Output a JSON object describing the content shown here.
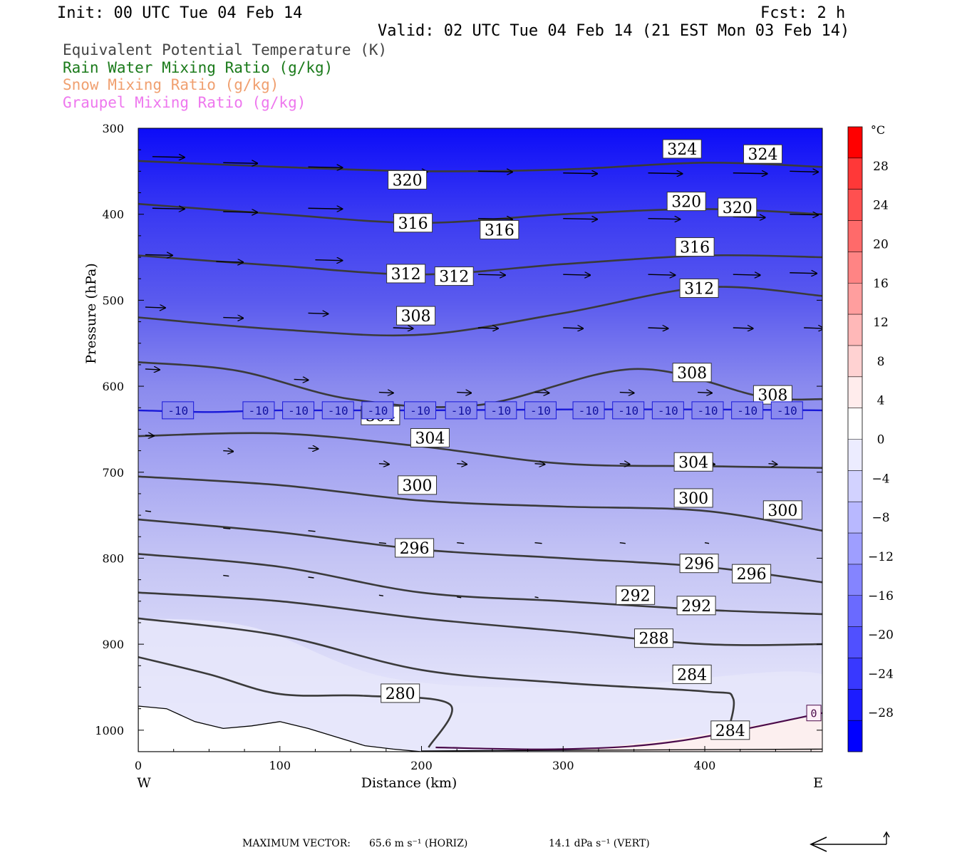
{
  "header": {
    "init": "Init: 00 UTC Tue 04 Feb 14",
    "fcst": "Fcst:    2 h",
    "valid": "Valid: 02 UTC Tue 04 Feb 14 (21 EST Mon 03 Feb 14)"
  },
  "legend": [
    {
      "label": "Equivalent Potential Temperature (K)",
      "color": "#444444"
    },
    {
      "label": "Rain Water Mixing Ratio (g/kg)",
      "color": "#1a7a1a"
    },
    {
      "label": "Snow Mixing Ratio (g/kg)",
      "color": "#f0a070"
    },
    {
      "label": "Graupel Mixing Ratio (g/kg)",
      "color": "#ee77ee"
    }
  ],
  "footer": {
    "max_vector": "MAXIMUM VECTOR:",
    "horiz": "65.6 m s⁻¹ (HORIZ)",
    "vert": "14.1 dPa s⁻¹ (VERT)"
  },
  "chart_data": {
    "type": "heatmap",
    "xlabel": "Distance (km)",
    "ylabel": "Pressure (hPa)",
    "x_left_label": "W",
    "x_right_label": "E",
    "xlim": [
      0,
      483
    ],
    "ylim": [
      300,
      1025
    ],
    "x_ticks": [
      0,
      100,
      200,
      300,
      400
    ],
    "y_ticks": [
      300,
      400,
      500,
      600,
      700,
      800,
      900,
      1000
    ],
    "colorbar": {
      "unit": "°C",
      "ticks": [
        28,
        24,
        20,
        16,
        12,
        8,
        4,
        0,
        -4,
        -8,
        -12,
        -16,
        -20,
        -24,
        -28
      ],
      "colors_top_to_bottom": [
        "#ff0000",
        "#ff3838",
        "#ff5050",
        "#ff6a6a",
        "#ff8484",
        "#ff9e9e",
        "#ffb8b8",
        "#ffd2d2",
        "#ffecec",
        "#ffffff",
        "#ececff",
        "#d2d2ff",
        "#b8b8ff",
        "#9e9eff",
        "#8484ff",
        "#6a6aff",
        "#5050ff",
        "#3838ff",
        "#1c1cff",
        "#0000ff"
      ]
    },
    "temperature_field_bands": [
      {
        "pressure": 300,
        "temp_c": -30,
        "color": "#0c0cf8"
      },
      {
        "pressure": 400,
        "temp_c": -26,
        "color": "#3a3af2"
      },
      {
        "pressure": 500,
        "temp_c": -20,
        "color": "#5a5aee"
      },
      {
        "pressure": 600,
        "temp_c": -13,
        "color": "#8a8aee"
      },
      {
        "pressure": 700,
        "temp_c": -8,
        "color": "#a8a8f2"
      },
      {
        "pressure": 800,
        "temp_c": -5,
        "color": "#c4c4f4"
      },
      {
        "pressure": 900,
        "temp_c": -3,
        "color": "#d8d8f8"
      },
      {
        "pressure": 1000,
        "temp_c": 0,
        "color": "#ececfc"
      }
    ],
    "theta_e_contours": [
      {
        "value": 324,
        "points": [
          [
            0,
            338
          ],
          [
            100,
            345
          ],
          [
            200,
            350
          ],
          [
            300,
            348
          ],
          [
            400,
            340
          ],
          [
            483,
            345
          ]
        ],
        "labels": [
          [
            384,
            324
          ],
          [
            441,
            330
          ]
        ]
      },
      {
        "value": 320,
        "points": [
          [
            0,
            388
          ],
          [
            100,
            400
          ],
          [
            200,
            410
          ],
          [
            300,
            400
          ],
          [
            400,
            394
          ],
          [
            483,
            400
          ]
        ],
        "labels": [
          [
            190,
            360
          ],
          [
            387,
            385
          ],
          [
            423,
            392
          ]
        ]
      },
      {
        "value": 316,
        "points": [
          [
            0,
            448
          ],
          [
            100,
            460
          ],
          [
            200,
            470
          ],
          [
            300,
            458
          ],
          [
            400,
            448
          ],
          [
            483,
            450
          ]
        ],
        "labels": [
          [
            194,
            410
          ],
          [
            255,
            418
          ],
          [
            393,
            438
          ]
        ]
      },
      {
        "value": 312,
        "points": [
          [
            0,
            520
          ],
          [
            100,
            534
          ],
          [
            200,
            540
          ],
          [
            300,
            515
          ],
          [
            400,
            485
          ],
          [
            483,
            495
          ]
        ],
        "labels": [
          [
            189,
            469
          ],
          [
            223,
            472
          ],
          [
            396,
            486
          ]
        ]
      },
      {
        "value": 308,
        "points": [
          [
            0,
            572
          ],
          [
            70,
            582
          ],
          [
            150,
            615
          ],
          [
            240,
            622
          ],
          [
            350,
            580
          ],
          [
            440,
            612
          ],
          [
            483,
            615
          ]
        ],
        "labels": [
          [
            196,
            518
          ],
          [
            391,
            584
          ],
          [
            448,
            610
          ]
        ]
      },
      {
        "value": 304,
        "points": [
          [
            0,
            658
          ],
          [
            100,
            655
          ],
          [
            200,
            670
          ],
          [
            300,
            690
          ],
          [
            400,
            693
          ],
          [
            483,
            695
          ]
        ],
        "labels": [
          [
            171,
            634
          ],
          [
            206,
            660
          ],
          [
            392,
            688
          ]
        ]
      },
      {
        "value": 300,
        "points": [
          [
            0,
            705
          ],
          [
            100,
            715
          ],
          [
            200,
            733
          ],
          [
            300,
            740
          ],
          [
            400,
            745
          ],
          [
            483,
            768
          ]
        ],
        "labels": [
          [
            197,
            715
          ],
          [
            392,
            730
          ],
          [
            455,
            744
          ]
        ]
      },
      {
        "value": 296,
        "points": [
          [
            0,
            755
          ],
          [
            100,
            770
          ],
          [
            200,
            790
          ],
          [
            300,
            800
          ],
          [
            400,
            810
          ],
          [
            483,
            828
          ]
        ],
        "labels": [
          [
            195,
            788
          ],
          [
            396,
            806
          ],
          [
            433,
            818
          ]
        ]
      },
      {
        "value": 292,
        "points": [
          [
            0,
            795
          ],
          [
            100,
            810
          ],
          [
            200,
            840
          ],
          [
            300,
            850
          ],
          [
            400,
            860
          ],
          [
            483,
            865
          ]
        ],
        "labels": [
          [
            351,
            843
          ],
          [
            394,
            855
          ]
        ]
      },
      {
        "value": 288,
        "points": [
          [
            0,
            840
          ],
          [
            100,
            850
          ],
          [
            200,
            870
          ],
          [
            300,
            885
          ],
          [
            400,
            900
          ],
          [
            483,
            900
          ]
        ],
        "labels": [
          [
            364,
            893
          ]
        ]
      },
      {
        "value": 284,
        "points": [
          [
            0,
            870
          ],
          [
            100,
            890
          ],
          [
            200,
            930
          ],
          [
            300,
            945
          ],
          [
            400,
            955
          ],
          [
            420,
            963
          ],
          [
            415,
            1010
          ]
        ],
        "labels": [
          [
            391,
            935
          ],
          [
            418,
            1000
          ]
        ]
      },
      {
        "value": 280,
        "points": [
          [
            0,
            915
          ],
          [
            50,
            935
          ],
          [
            100,
            958
          ],
          [
            160,
            960
          ],
          [
            220,
            970
          ],
          [
            205,
            1020
          ]
        ],
        "labels": [
          [
            185,
            957
          ]
        ]
      }
    ],
    "isotherm_minus10": {
      "value": -10,
      "points": [
        [
          0,
          628
        ],
        [
          50,
          630
        ],
        [
          100,
          628
        ],
        [
          200,
          628
        ],
        [
          300,
          627
        ],
        [
          400,
          627
        ],
        [
          483,
          628
        ]
      ],
      "labels": [
        [
          28,
          -10
        ],
        [
          85,
          -10
        ],
        [
          113,
          -10
        ],
        [
          141,
          -10
        ],
        [
          169,
          -10
        ],
        [
          199,
          -10
        ],
        [
          228,
          -10
        ],
        [
          256,
          -10
        ],
        [
          284,
          -10
        ],
        [
          318,
          -10
        ],
        [
          346,
          -10
        ],
        [
          374,
          -10
        ],
        [
          402,
          -10
        ],
        [
          430,
          -10
        ],
        [
          458,
          -10
        ]
      ]
    },
    "isotherm_zero_label": "0",
    "wind_vectors": [
      {
        "x": 10,
        "p": 333,
        "len": 45
      },
      {
        "x": 60,
        "p": 340,
        "len": 48
      },
      {
        "x": 120,
        "p": 345,
        "len": 48
      },
      {
        "x": 180,
        "p": 350,
        "len": 48
      },
      {
        "x": 240,
        "p": 350,
        "len": 48
      },
      {
        "x": 300,
        "p": 352,
        "len": 48
      },
      {
        "x": 360,
        "p": 352,
        "len": 48
      },
      {
        "x": 420,
        "p": 352,
        "len": 48
      },
      {
        "x": 460,
        "p": 350,
        "len": 40
      },
      {
        "x": 10,
        "p": 393,
        "len": 45
      },
      {
        "x": 60,
        "p": 397,
        "len": 48
      },
      {
        "x": 120,
        "p": 393,
        "len": 48
      },
      {
        "x": 180,
        "p": 403,
        "len": 48
      },
      {
        "x": 240,
        "p": 405,
        "len": 48
      },
      {
        "x": 300,
        "p": 405,
        "len": 48
      },
      {
        "x": 360,
        "p": 405,
        "len": 45
      },
      {
        "x": 420,
        "p": 403,
        "len": 45
      },
      {
        "x": 460,
        "p": 400,
        "len": 40
      },
      {
        "x": 5,
        "p": 447,
        "len": 38
      },
      {
        "x": 55,
        "p": 455,
        "len": 38
      },
      {
        "x": 125,
        "p": 453,
        "len": 38
      },
      {
        "x": 180,
        "p": 467,
        "len": 38
      },
      {
        "x": 240,
        "p": 470,
        "len": 38
      },
      {
        "x": 300,
        "p": 470,
        "len": 38
      },
      {
        "x": 360,
        "p": 470,
        "len": 38
      },
      {
        "x": 420,
        "p": 470,
        "len": 38
      },
      {
        "x": 460,
        "p": 468,
        "len": 38
      },
      {
        "x": 5,
        "p": 508,
        "len": 28
      },
      {
        "x": 60,
        "p": 520,
        "len": 28
      },
      {
        "x": 120,
        "p": 515,
        "len": 28
      },
      {
        "x": 180,
        "p": 532,
        "len": 28
      },
      {
        "x": 240,
        "p": 532,
        "len": 28
      },
      {
        "x": 300,
        "p": 532,
        "len": 28
      },
      {
        "x": 360,
        "p": 532,
        "len": 28
      },
      {
        "x": 420,
        "p": 532,
        "len": 28
      },
      {
        "x": 470,
        "p": 532,
        "len": 28
      },
      {
        "x": 5,
        "p": 580,
        "len": 20
      },
      {
        "x": 110,
        "p": 592,
        "len": 20
      },
      {
        "x": 170,
        "p": 607,
        "len": 20
      },
      {
        "x": 225,
        "p": 607,
        "len": 20
      },
      {
        "x": 280,
        "p": 607,
        "len": 20
      },
      {
        "x": 340,
        "p": 607,
        "len": 20
      },
      {
        "x": 395,
        "p": 607,
        "len": 20
      },
      {
        "x": 5,
        "p": 657,
        "len": 12
      },
      {
        "x": 60,
        "p": 675,
        "len": 14
      },
      {
        "x": 120,
        "p": 672,
        "len": 14
      },
      {
        "x": 170,
        "p": 690,
        "len": 14
      },
      {
        "x": 225,
        "p": 690,
        "len": 14
      },
      {
        "x": 280,
        "p": 690,
        "len": 14
      },
      {
        "x": 340,
        "p": 690,
        "len": 14
      },
      {
        "x": 400,
        "p": 690,
        "len": 14
      },
      {
        "x": 445,
        "p": 690,
        "len": 12
      },
      {
        "x": 5,
        "p": 745,
        "len": 8
      },
      {
        "x": 60,
        "p": 765,
        "len": 10
      },
      {
        "x": 120,
        "p": 768,
        "len": 10
      },
      {
        "x": 170,
        "p": 782,
        "len": 10
      },
      {
        "x": 225,
        "p": 782,
        "len": 10
      },
      {
        "x": 280,
        "p": 782,
        "len": 10
      },
      {
        "x": 340,
        "p": 782,
        "len": 8
      },
      {
        "x": 400,
        "p": 782,
        "len": 6
      },
      {
        "x": 60,
        "p": 820,
        "len": 8
      },
      {
        "x": 120,
        "p": 822,
        "len": 8
      },
      {
        "x": 170,
        "p": 843,
        "len": 6
      },
      {
        "x": 225,
        "p": 845,
        "len": 6
      },
      {
        "x": 280,
        "p": 845,
        "len": 5
      },
      {
        "x": 340,
        "p": 845,
        "len": 5
      }
    ]
  }
}
